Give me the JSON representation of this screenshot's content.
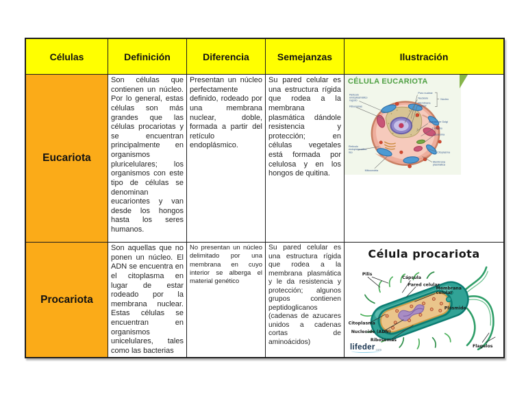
{
  "table": {
    "headers": [
      "Células",
      "Definición",
      "Diferencia",
      "Semejanzas",
      "Ilustración"
    ],
    "rows": [
      {
        "label": "Eucariota",
        "definicion": "Son células que contienen un núcleo. Por lo general, estas células son más grandes que las células procariotas y se encuentran principalmente en organismos pluricelulares; los organismos con este tipo de células se denominan eucariontes y van desde los hongos hasta los seres humanos.",
        "diferencia": "Presentan un núcleo perfectamente definido, rodeado por una membrana nuclear, doble, formada a partir del retículo endoplásmico.",
        "semejanzas": "Su pared celular es una estructura rígida que rodea a la membrana plasmática dándole resistencia y protección; en células vegetales está formada por celulosa y en los hongos de quitina."
      },
      {
        "label": "Procariota",
        "definicion": "Son aquellas que no ponen un núcleo. El ADN se encuentra en el citoplasma en lugar de estar rodeado por la membrana nuclear. Estas células se encuentran en organismos unicelulares, tales como las bacterias",
        "diferencia": "No presentan un núcleo delimitado por una membrana en cuyo interior se alberga el material genético",
        "semejanzas": "Su pared celular es una estructura rígida que rodea a la membrana plasmática y le da resistencia y protección; algunos grupos contienen peptidoglicanos (cadenas de azucares unidos a cadenas cortas de aminoácidos)"
      }
    ]
  },
  "illustrations": {
    "eucariota": {
      "title": "CÉLULA EUCARIOTA",
      "labels": [
        "Retículo endoplasmático rugoso",
        "Ribosomas",
        "Poro nuclear",
        "Nucléolo",
        "Membrana nuclear",
        "Núcleo",
        "Aparato de Golgi",
        "Centriolo",
        "Lisosoma",
        "Citoplasma",
        "Retículo endoplasmático liso",
        "Mitocondria",
        "Membrana plasmática"
      ]
    },
    "procariota": {
      "title": "Célula procariota",
      "labels": [
        "Pilis",
        "Cápsula",
        "Pared celular",
        "Membrana celular",
        "Plásmido",
        "Citoplasma",
        "Nucleoide (ADN)",
        "Ribosomas",
        "Flagelos"
      ],
      "logo": "lifeder",
      "logo_suffix": "com"
    }
  },
  "colors": {
    "header_bg": "#FFFF00",
    "row_label_bg": "#FBAB18",
    "table_border": "#1C1C1C",
    "eucariota_title_green": "#4FA043",
    "animal_cell_pink": "#F2C0B2",
    "nucleus_purple": "#8F86C9",
    "mitochondria_blue": "#4E9AD3",
    "capsule_teal": "#31A396",
    "cytoplasm_tan": "#EAC58B",
    "flagella_green": "#2F9E68"
  }
}
